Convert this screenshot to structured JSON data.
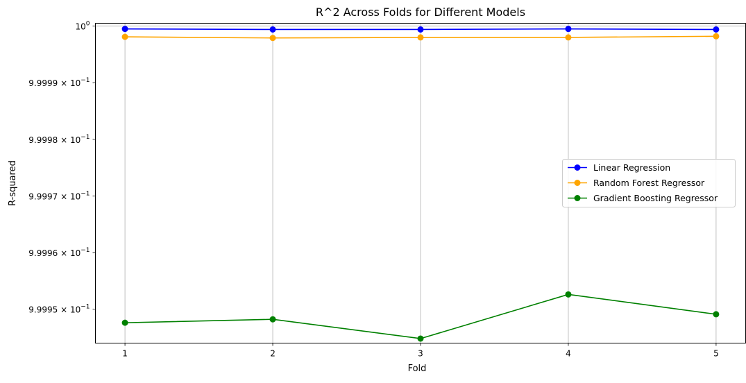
{
  "chart_data": {
    "type": "line",
    "title": "R^2 Across Folds for Different Models",
    "xlabel": "Fold",
    "ylabel": "R-squared",
    "x": [
      1,
      2,
      3,
      4,
      5
    ],
    "x_ticks": [
      "1",
      "2",
      "3",
      "4",
      "5"
    ],
    "xlim": [
      0.8,
      5.2
    ],
    "ylim": [
      0.999944,
      1.0000005
    ],
    "y_scale": "log",
    "y_ticks": [
      {
        "value": 1.0,
        "label": "10^0",
        "mantissa": "",
        "base": "10",
        "exp": "0"
      },
      {
        "value": 0.99999,
        "label": "9.9999 × 10^-1",
        "mantissa": "9.9999 × ",
        "base": "10",
        "exp": "−1"
      },
      {
        "value": 0.99998,
        "label": "9.9998 × 10^-1",
        "mantissa": "9.9998 × ",
        "base": "10",
        "exp": "−1"
      },
      {
        "value": 0.99997,
        "label": "9.9997 × 10^-1",
        "mantissa": "9.9997 × ",
        "base": "10",
        "exp": "−1"
      },
      {
        "value": 0.99996,
        "label": "9.9996 × 10^-1",
        "mantissa": "9.9996 × ",
        "base": "10",
        "exp": "−1"
      },
      {
        "value": 0.99995,
        "label": "9.9995 × 10^-1",
        "mantissa": "9.9995 × ",
        "base": "10",
        "exp": "−1"
      }
    ],
    "grid": true,
    "legend_position": "center-right",
    "series": [
      {
        "name": "Linear Regression",
        "color": "#0000ff",
        "marker": "circle",
        "values": [
          0.9999995,
          0.9999994,
          0.9999994,
          0.9999995,
          0.9999994
        ]
      },
      {
        "name": "Random Forest Regressor",
        "color": "#ffa500",
        "marker": "circle",
        "values": [
          0.9999981,
          0.9999979,
          0.999998,
          0.999998,
          0.9999982
        ]
      },
      {
        "name": "Gradient Boosting Regressor",
        "color": "#008000",
        "marker": "circle",
        "values": [
          0.9999476,
          0.9999482,
          0.9999448,
          0.9999526,
          0.9999491
        ]
      }
    ]
  }
}
